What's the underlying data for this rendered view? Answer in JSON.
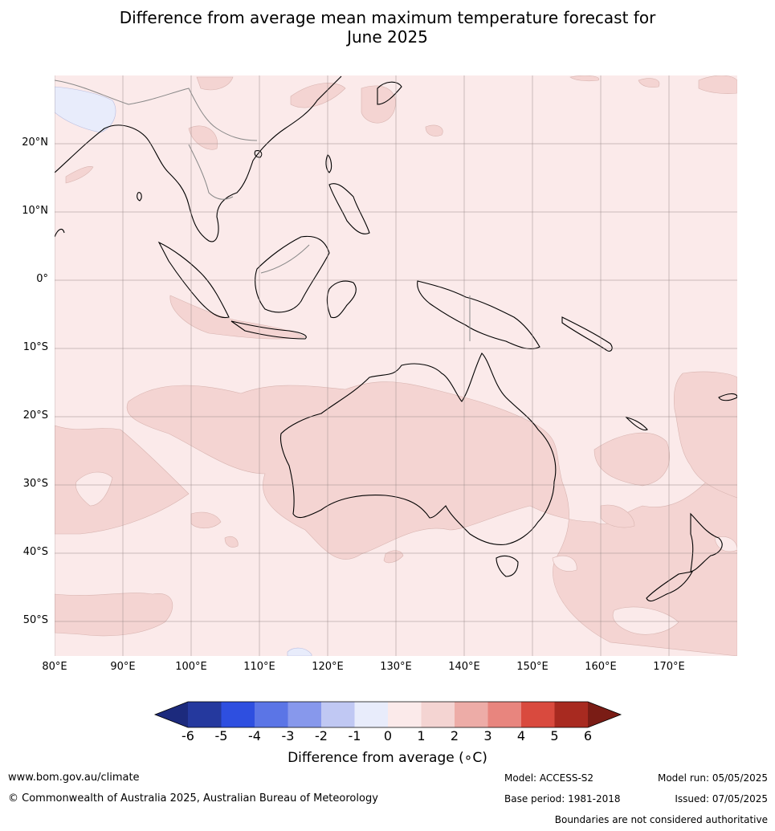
{
  "title_line1": "Difference from average mean maximum temperature forecast for",
  "title_line2": "June 2025",
  "lat_labels": [
    "20°N",
    "10°N",
    "0°",
    "10°S",
    "20°S",
    "30°S",
    "40°S",
    "50°S"
  ],
  "lon_labels": [
    "80°E",
    "90°E",
    "100°E",
    "110°E",
    "120°E",
    "130°E",
    "140°E",
    "150°E",
    "160°E",
    "170°E"
  ],
  "colorbar": {
    "ticks": [
      "-6",
      "-5",
      "-4",
      "-3",
      "-2",
      "-1",
      "0",
      "1",
      "2",
      "3",
      "4",
      "5",
      "6"
    ],
    "colors": [
      "#25399e",
      "#2e4fe0",
      "#5b75e6",
      "#8798ec",
      "#c0c8f3",
      "#e8ecfb",
      "#fbeaea",
      "#f4d4d2",
      "#edaca7",
      "#e8857e",
      "#d94a3e",
      "#a82a20"
    ],
    "under_color": "#1c2a7d",
    "over_color": "#7a1c15",
    "label": "Difference from average (∘C)"
  },
  "map": {
    "base_fill": "#fbeaea",
    "warm_fill": "#f4d4d2",
    "cool_fill": "#e8ecfb"
  },
  "footer": {
    "website": "www.bom.gov.au/climate",
    "copyright": "© Commonwealth of Australia 2025, Australian Bureau of Meteorology",
    "model": "Model: ACCESS-S2",
    "base_period": "Base period: 1981-2018",
    "model_run": "Model run: 05/05/2025",
    "issued": "Issued: 07/05/2025",
    "disclaimer": "Boundaries are not considered authoritative"
  }
}
